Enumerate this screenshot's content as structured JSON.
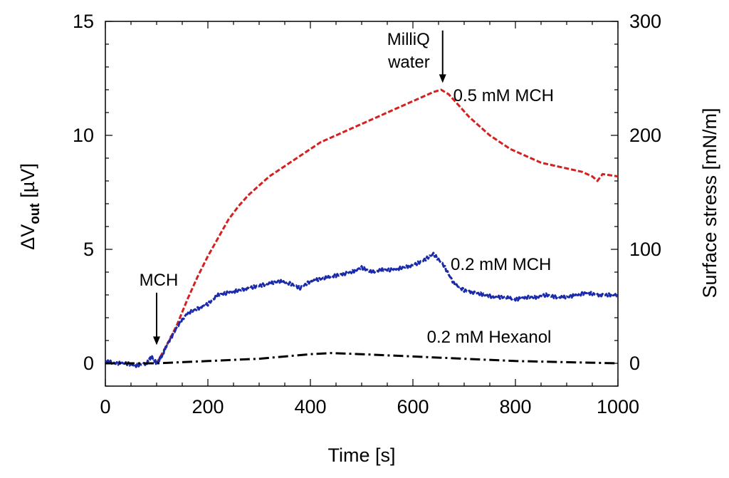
{
  "chart_data": {
    "type": "line",
    "title": "",
    "xlabel": "Time [s]",
    "ylabel_main": "ΔV",
    "ylabel_sub": "out",
    "ylabel_unit": " [µV]",
    "y2label": "Surface stress [mN/m]",
    "xlim": [
      0,
      1000
    ],
    "ylim": [
      -1,
      15
    ],
    "y2lim": [
      -20,
      300
    ],
    "xticks": [
      0,
      200,
      400,
      600,
      800,
      1000
    ],
    "yticks": [
      0,
      5,
      10,
      15
    ],
    "y2ticks": [
      0,
      100,
      200,
      300
    ],
    "series": [
      {
        "name": "0.5 mM MCH",
        "color": "#d42020",
        "style": "dashed",
        "points": [
          [
            100,
            0.0
          ],
          [
            120,
            0.8
          ],
          [
            140,
            1.7
          ],
          [
            160,
            2.8
          ],
          [
            180,
            3.8
          ],
          [
            200,
            4.7
          ],
          [
            220,
            5.5
          ],
          [
            240,
            6.3
          ],
          [
            260,
            6.9
          ],
          [
            280,
            7.4
          ],
          [
            300,
            7.8
          ],
          [
            320,
            8.2
          ],
          [
            340,
            8.5
          ],
          [
            360,
            8.8
          ],
          [
            380,
            9.1
          ],
          [
            400,
            9.4
          ],
          [
            420,
            9.7
          ],
          [
            440,
            9.9
          ],
          [
            460,
            10.1
          ],
          [
            480,
            10.3
          ],
          [
            500,
            10.5
          ],
          [
            520,
            10.7
          ],
          [
            540,
            10.9
          ],
          [
            560,
            11.1
          ],
          [
            580,
            11.3
          ],
          [
            600,
            11.5
          ],
          [
            620,
            11.7
          ],
          [
            640,
            11.9
          ],
          [
            655,
            12.0
          ],
          [
            670,
            11.8
          ],
          [
            690,
            11.3
          ],
          [
            710,
            10.8
          ],
          [
            730,
            10.4
          ],
          [
            750,
            10.0
          ],
          [
            770,
            9.7
          ],
          [
            790,
            9.4
          ],
          [
            810,
            9.2
          ],
          [
            830,
            9.0
          ],
          [
            850,
            8.8
          ],
          [
            870,
            8.7
          ],
          [
            890,
            8.6
          ],
          [
            910,
            8.5
          ],
          [
            930,
            8.4
          ],
          [
            950,
            8.2
          ],
          [
            960,
            8.0
          ],
          [
            970,
            8.3
          ],
          [
            1000,
            8.2
          ]
        ]
      },
      {
        "name": "0.2 mM MCH",
        "color": "#1a2aaa",
        "style": "noisy",
        "points": [
          [
            0,
            0.1
          ],
          [
            20,
            0.0
          ],
          [
            40,
            0.0
          ],
          [
            60,
            -0.1
          ],
          [
            80,
            0.0
          ],
          [
            90,
            0.3
          ],
          [
            100,
            0.0
          ],
          [
            110,
            0.3
          ],
          [
            120,
            0.8
          ],
          [
            140,
            1.6
          ],
          [
            160,
            2.2
          ],
          [
            180,
            2.4
          ],
          [
            200,
            2.6
          ],
          [
            220,
            3.0
          ],
          [
            240,
            3.1
          ],
          [
            260,
            3.2
          ],
          [
            280,
            3.3
          ],
          [
            300,
            3.4
          ],
          [
            320,
            3.5
          ],
          [
            340,
            3.6
          ],
          [
            360,
            3.5
          ],
          [
            380,
            3.3
          ],
          [
            400,
            3.6
          ],
          [
            420,
            3.7
          ],
          [
            440,
            3.8
          ],
          [
            460,
            3.9
          ],
          [
            480,
            4.0
          ],
          [
            500,
            4.2
          ],
          [
            520,
            4.0
          ],
          [
            540,
            4.1
          ],
          [
            560,
            4.1
          ],
          [
            580,
            4.2
          ],
          [
            600,
            4.3
          ],
          [
            620,
            4.5
          ],
          [
            640,
            4.8
          ],
          [
            660,
            4.3
          ],
          [
            680,
            3.5
          ],
          [
            700,
            3.2
          ],
          [
            720,
            3.1
          ],
          [
            740,
            3.0
          ],
          [
            760,
            2.9
          ],
          [
            780,
            2.9
          ],
          [
            800,
            2.8
          ],
          [
            820,
            2.9
          ],
          [
            840,
            2.9
          ],
          [
            860,
            3.0
          ],
          [
            880,
            2.9
          ],
          [
            900,
            2.9
          ],
          [
            920,
            3.0
          ],
          [
            940,
            3.1
          ],
          [
            960,
            3.0
          ],
          [
            980,
            3.0
          ],
          [
            1000,
            3.0
          ]
        ]
      },
      {
        "name": "0.2 mM Hexanol",
        "color": "#000000",
        "style": "dashdot",
        "points": [
          [
            0,
            0.0
          ],
          [
            100,
            0.0
          ],
          [
            200,
            0.1
          ],
          [
            300,
            0.2
          ],
          [
            400,
            0.4
          ],
          [
            440,
            0.45
          ],
          [
            500,
            0.4
          ],
          [
            600,
            0.3
          ],
          [
            700,
            0.2
          ],
          [
            800,
            0.1
          ],
          [
            900,
            0.05
          ],
          [
            1000,
            0.0
          ]
        ]
      }
    ],
    "annotations": [
      {
        "lines": [
          "MCH"
        ],
        "arrow_x": 100,
        "arrow_top": 3.1,
        "arrow_tip": 0.8
      },
      {
        "lines": [
          "MilliQ",
          "water"
        ],
        "arrow_x": 658,
        "arrow_top": 14.6,
        "arrow_tip": 12.3
      }
    ],
    "series_labels": [
      {
        "text": "0.5 mM MCH",
        "x": 875,
        "y": 11.5
      },
      {
        "text": "0.2 mM MCH",
        "x": 870,
        "y": 4.1
      },
      {
        "text": "0.2 mM Hexanol",
        "x": 870,
        "y": 0.9
      }
    ]
  }
}
